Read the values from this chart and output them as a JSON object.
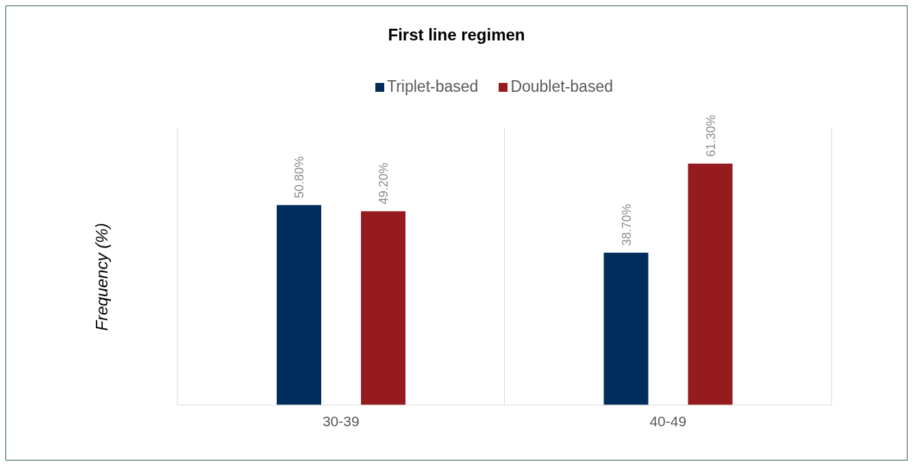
{
  "chart_data": {
    "type": "bar",
    "title": "First line regimen",
    "ylabel": "Frequency (%)",
    "categories": [
      "30-39",
      "40-49"
    ],
    "series": [
      {
        "name": "Triplet-based",
        "color": "#002d5c",
        "values": [
          50.8,
          38.7
        ],
        "value_labels": [
          "50.80%",
          "38.70%"
        ]
      },
      {
        "name": "Doublet-based",
        "color": "#961b1f",
        "values": [
          49.2,
          61.3
        ],
        "value_labels": [
          "49.20%",
          "61.30%"
        ]
      }
    ],
    "legend": "top",
    "grid": "x"
  }
}
